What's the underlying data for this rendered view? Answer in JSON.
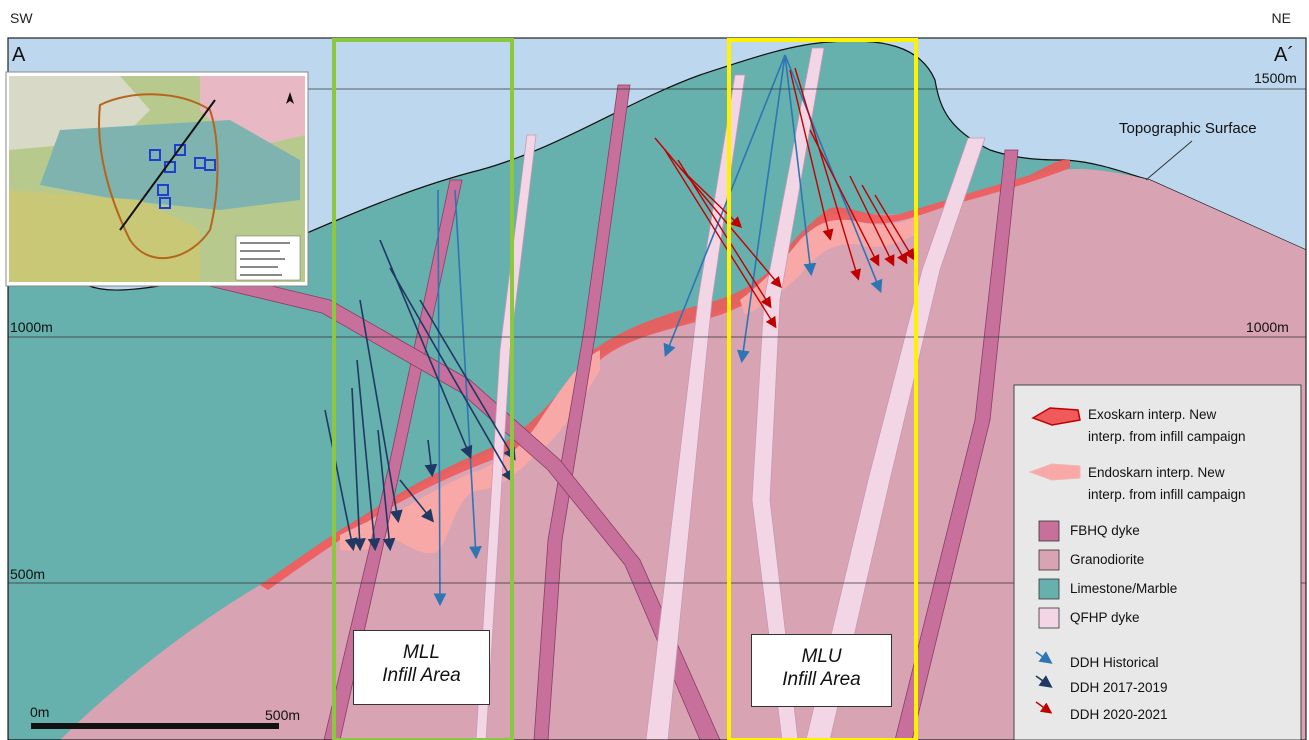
{
  "header": {
    "left": "SW",
    "right": "NE"
  },
  "section_ends": {
    "left": "A",
    "right": "A´"
  },
  "elevations": {
    "top": "1500m",
    "mid_left": "1000m",
    "mid_right": "1000m",
    "low": "500m"
  },
  "topo_label": "Topographic Surface",
  "infill_areas": [
    {
      "line1": "MLL",
      "line2": "Infill Area",
      "frame_color": "#8dc63f"
    },
    {
      "line1": "MLU",
      "line2": "Infill Area",
      "frame_color": "#fff200"
    }
  ],
  "legend": {
    "exoskarn": [
      "Exoskarn interp. New",
      "interp. from infill campaign"
    ],
    "endoskarn": [
      "Endoskarn interp. New",
      "interp. from infill campaign"
    ],
    "fbhq": "FBHQ dyke",
    "granodiorite": "Granodiorite",
    "limestone": "Limestone/Marble",
    "qfhp": "QFHP dyke",
    "ddh_historical": "DDH  Historical",
    "ddh_2017": "DDH 2017-2019",
    "ddh_2020": "DDH 2020-2021"
  },
  "scale": {
    "start": "0m",
    "end": "500m"
  },
  "colors": {
    "sky": "#bdd7ee",
    "limestone": "#66b0ad",
    "granodiorite": "#d8a3b2",
    "fbhq": "#c7709b",
    "qfhp": "#f3d6e6",
    "exoskarn": "#f05a5a",
    "endoskarn": "#f9a8a8",
    "ddh_historical": "#2e75b6",
    "ddh_2017": "#1f3864",
    "ddh_2020": "#c00000"
  }
}
